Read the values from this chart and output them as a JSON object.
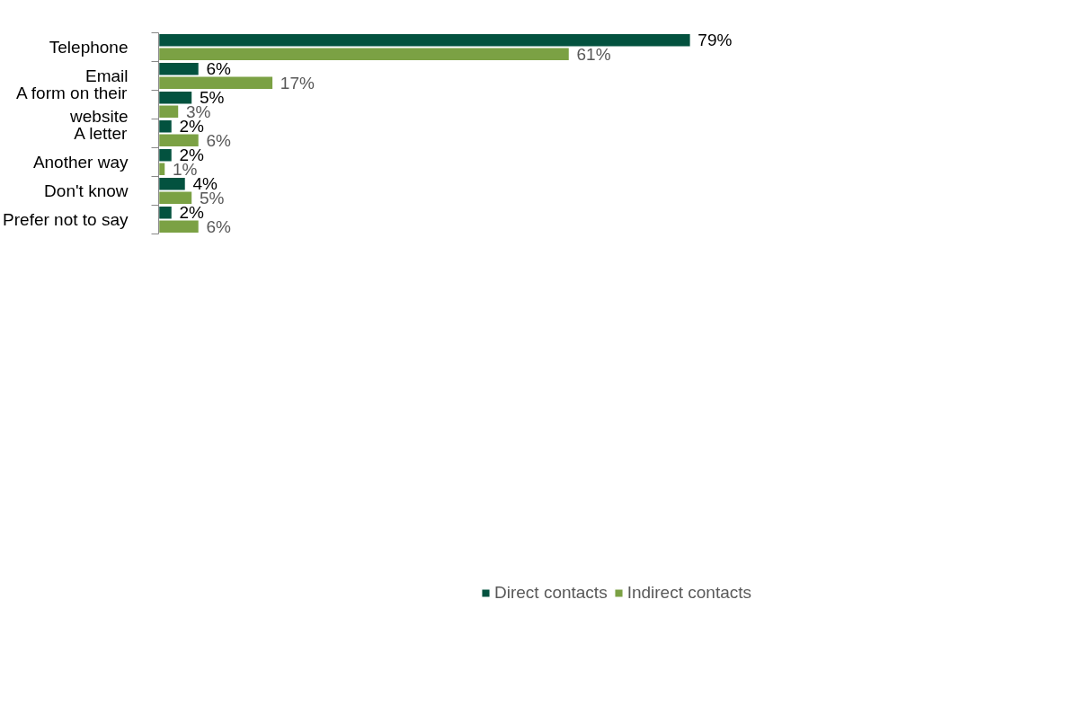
{
  "chart_data": {
    "type": "bar",
    "orientation": "horizontal",
    "categories": [
      "Telephone",
      "Email",
      "A form on their website",
      "A letter",
      "Another way",
      "Don't know",
      "Prefer not to say"
    ],
    "series": [
      {
        "name": "Direct contacts",
        "color": "#03523f",
        "values": [
          79,
          6,
          5,
          2,
          2,
          4,
          2
        ],
        "value_labels": [
          "79%",
          "6%",
          "5%",
          "2%",
          "2%",
          "4%",
          "2%"
        ]
      },
      {
        "name": "Indirect contacts",
        "color": "#7ba144",
        "values": [
          61,
          17,
          3,
          6,
          1,
          5,
          6
        ],
        "value_labels": [
          "61%",
          "17%",
          "3%",
          "6%",
          "1%",
          "5%",
          "6%"
        ]
      }
    ],
    "tick_labels": "y",
    "legend": "bottom"
  }
}
